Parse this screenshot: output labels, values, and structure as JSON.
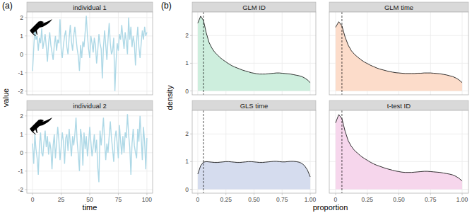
{
  "chart_data": [
    {
      "type": "line",
      "label": "(a)",
      "x_label": "time",
      "y_label": "value",
      "xlim": [
        -5,
        105
      ],
      "ylim": [
        -2.2,
        2.3
      ],
      "xticks": [
        0,
        25,
        50,
        75,
        100
      ],
      "yticks": [
        -2,
        -1,
        0,
        1,
        2
      ],
      "grid": true,
      "x": [
        0,
        1,
        2,
        3,
        4,
        5,
        6,
        7,
        8,
        9,
        10,
        11,
        12,
        13,
        14,
        15,
        16,
        17,
        18,
        19,
        20,
        21,
        22,
        23,
        24,
        25,
        26,
        27,
        28,
        29,
        30,
        31,
        32,
        33,
        34,
        35,
        36,
        37,
        38,
        39,
        40,
        41,
        42,
        43,
        44,
        45,
        46,
        47,
        48,
        49,
        50,
        51,
        52,
        53,
        54,
        55,
        56,
        57,
        58,
        59,
        60,
        61,
        62,
        63,
        64,
        65,
        66,
        67,
        68,
        69,
        70,
        71,
        72,
        73,
        74,
        75,
        76,
        77,
        78,
        79,
        80,
        81,
        82,
        83,
        84,
        85,
        86,
        87,
        88,
        89,
        90,
        91,
        92,
        93,
        94,
        95,
        96,
        97,
        98,
        99,
        100
      ],
      "series": [
        {
          "name": "individual 1",
          "color": "#add8e6",
          "values": [
            -0.9,
            0.3,
            1.5,
            0.8,
            1.0,
            0.2,
            0.9,
            0.6,
            1.4,
            0.3,
            0.7,
            1.1,
            0.4,
            -0.4,
            0.6,
            1.2,
            0.5,
            0.1,
            -0.3,
            0.5,
            1.0,
            0.2,
            0.8,
            0.6,
            1.9,
            0.3,
            -0.2,
            0.5,
            1.0,
            1.3,
            0.4,
            0.0,
            0.9,
            1.6,
            0.7,
            0.2,
            1.0,
            1.5,
            0.9,
            0.3,
            -0.1,
            -0.9,
            0.5,
            -0.2,
            0.7,
            0.4,
            1.2,
            2.1,
            1.0,
            0.3,
            -0.2,
            1.0,
            0.6,
            0.1,
            0.9,
            0.5,
            -0.5,
            0.2,
            1.1,
            0.6,
            0.3,
            -1.3,
            0.4,
            1.3,
            0.5,
            -0.3,
            0.8,
            1.7,
            0.6,
            0.0,
            0.2,
            0.9,
            -2.0,
            -0.4,
            0.6,
            0.2,
            1.1,
            0.8,
            1.6,
            0.9,
            0.3,
            1.2,
            0.7,
            0.0,
            2.0,
            0.8,
            1.5,
            0.4,
            1.0,
            0.6,
            -0.6,
            0.7,
            1.5,
            0.4,
            -0.2,
            0.6,
            1.3,
            0.8,
            1.5,
            1.0,
            1.2
          ]
        },
        {
          "name": "individual 2",
          "color": "#add8e6",
          "values": [
            0.5,
            -0.6,
            1.0,
            0.2,
            -0.3,
            -1.2,
            0.4,
            1.1,
            0.0,
            -0.2,
            0.6,
            1.2,
            0.3,
            0.9,
            -0.1,
            0.6,
            0.2,
            -0.9,
            0.4,
            1.0,
            -0.3,
            0.5,
            1.4,
            0.7,
            -0.4,
            0.3,
            1.1,
            0.6,
            -0.6,
            0.8,
            1.0,
            0.1,
            1.3,
            0.5,
            -0.2,
            0.9,
            0.4,
            1.0,
            1.9,
            0.6,
            -0.1,
            -1.0,
            1.3,
            0.8,
            -0.7,
            1.1,
            0.2,
            0.9,
            -0.2,
            0.5,
            1.4,
            0.6,
            -0.2,
            0.3,
            1.0,
            0.0,
            0.7,
            -0.8,
            -1.6,
            1.2,
            0.4,
            1.1,
            1.9,
            0.6,
            -0.4,
            0.5,
            0.0,
            0.9,
            1.7,
            0.8,
            0.2,
            -0.5,
            0.8,
            1.2,
            0.5,
            -0.3,
            1.5,
            0.6,
            -0.1,
            0.9,
            0.0,
            1.1,
            0.8,
            2.1,
            1.0,
            0.3,
            -1.2,
            0.5,
            1.3,
            0.4,
            0.0,
            -0.3,
            1.3,
            0.6,
            2.0,
            0.8,
            -0.4,
            1.4,
            0.6,
            -0.9,
            0.8
          ]
        }
      ]
    },
    {
      "type": "area",
      "label": "(b)",
      "x_label": "proportion",
      "y_label": "density",
      "xlim": [
        -0.05,
        1.05
      ],
      "ylim": [
        -0.14,
        2.85
      ],
      "xticks": [
        0,
        0.25,
        {
          "value": 0.5,
          "label": "0.50"
        },
        0.75,
        {
          "value": 1,
          "label": "1.00"
        }
      ],
      "yticks": [
        0,
        1,
        2
      ],
      "grid": true,
      "vline": 0.05,
      "x": [
        0,
        0.025,
        0.05,
        0.075,
        0.1,
        0.125,
        0.15,
        0.175,
        0.2,
        0.225,
        0.25,
        0.275,
        0.3,
        0.325,
        0.35,
        0.375,
        0.4,
        0.425,
        0.45,
        0.475,
        0.5,
        0.525,
        0.55,
        0.575,
        0.6,
        0.625,
        0.65,
        0.675,
        0.7,
        0.725,
        0.75,
        0.775,
        0.8,
        0.825,
        0.85,
        0.875,
        0.9,
        0.925,
        0.95,
        0.975,
        1
      ],
      "series": [
        {
          "name": "GLM ID",
          "color": "#cdeedd",
          "values": [
            2.45,
            2.7,
            2.55,
            2.1,
            1.75,
            1.55,
            1.4,
            1.3,
            1.2,
            1.12,
            1.05,
            0.98,
            0.92,
            0.87,
            0.83,
            0.79,
            0.75,
            0.72,
            0.69,
            0.66,
            0.64,
            0.62,
            0.61,
            0.61,
            0.61,
            0.62,
            0.63,
            0.64,
            0.65,
            0.65,
            0.64,
            0.63,
            0.62,
            0.61,
            0.59,
            0.57,
            0.55,
            0.52,
            0.47,
            0.4,
            0.3
          ]
        },
        {
          "name": "GLM time",
          "color": "#fcdcca",
          "values": [
            2.3,
            2.5,
            2.35,
            1.95,
            1.65,
            1.45,
            1.32,
            1.22,
            1.13,
            1.05,
            0.99,
            0.93,
            0.88,
            0.83,
            0.79,
            0.76,
            0.73,
            0.7,
            0.68,
            0.66,
            0.65,
            0.64,
            0.63,
            0.63,
            0.63,
            0.63,
            0.64,
            0.64,
            0.65,
            0.65,
            0.65,
            0.64,
            0.63,
            0.62,
            0.6,
            0.58,
            0.55,
            0.52,
            0.47,
            0.4,
            0.3
          ]
        },
        {
          "name": "GLS time",
          "color": "#d5dcee",
          "values": [
            0.55,
            0.85,
            0.98,
            1.0,
            0.99,
            0.98,
            0.97,
            0.97,
            0.98,
            0.99,
            1.0,
            1.0,
            0.99,
            0.98,
            0.97,
            0.97,
            0.98,
            0.99,
            1.0,
            1.0,
            0.99,
            0.98,
            0.97,
            0.97,
            0.98,
            0.99,
            1.0,
            1.01,
            1.01,
            1.0,
            0.99,
            0.99,
            1.0,
            1.01,
            1.01,
            1.0,
            0.98,
            0.94,
            0.85,
            0.7,
            0.45
          ]
        },
        {
          "name": "t-test ID",
          "color": "#f6d6ec",
          "values": [
            2.4,
            2.7,
            2.55,
            2.1,
            1.75,
            1.55,
            1.4,
            1.3,
            1.2,
            1.12,
            1.05,
            0.98,
            0.92,
            0.87,
            0.83,
            0.79,
            0.75,
            0.72,
            0.69,
            0.66,
            0.64,
            0.62,
            0.61,
            0.61,
            0.61,
            0.62,
            0.63,
            0.64,
            0.65,
            0.65,
            0.64,
            0.63,
            0.62,
            0.61,
            0.59,
            0.57,
            0.55,
            0.52,
            0.47,
            0.4,
            0.3
          ]
        }
      ]
    }
  ]
}
